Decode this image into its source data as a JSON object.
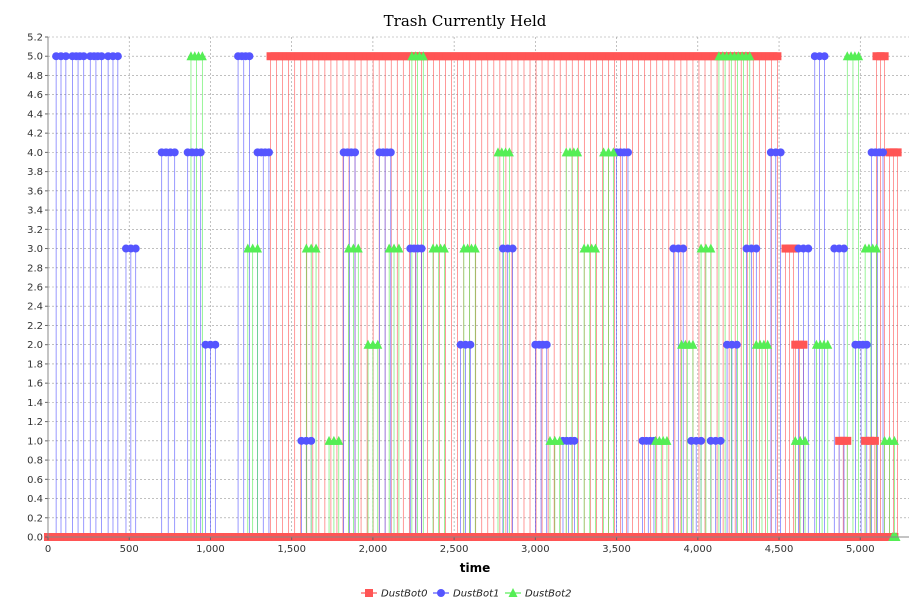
{
  "chart_data": {
    "type": "line",
    "title": "Trash Currently Held",
    "xlabel": "time",
    "ylabel": "",
    "xlim": [
      0,
      5300
    ],
    "ylim": [
      0,
      5.2
    ],
    "x_ticks": [
      "0",
      "500",
      "1,000",
      "1,500",
      "2,000",
      "2,500",
      "3,000",
      "3,500",
      "4,000",
      "4,500",
      "5,000"
    ],
    "x_tick_values": [
      0,
      500,
      1000,
      1500,
      2000,
      2500,
      3000,
      3500,
      4000,
      4500,
      5000
    ],
    "y_ticks": [
      "0.0",
      "0.2",
      "0.4",
      "0.6",
      "0.8",
      "1.0",
      "1.2",
      "1.4",
      "1.6",
      "1.8",
      "2.0",
      "2.2",
      "2.4",
      "2.6",
      "2.8",
      "3.0",
      "3.2",
      "3.4",
      "3.6",
      "3.8",
      "4.0",
      "4.2",
      "4.4",
      "4.6",
      "4.8",
      "5.0",
      "5.2"
    ],
    "grid": true,
    "legend_position": "bottom",
    "series": [
      {
        "name": "DustBot0",
        "color": "#ff5555",
        "marker": "square",
        "segments": [
          {
            "x": [
              0,
              5210
            ],
            "y": 0
          },
          {
            "x": [
              1370,
              4490
            ],
            "y": 5
          },
          {
            "x": [
              4540,
              4590
            ],
            "y": 3
          },
          {
            "x": [
              4600,
              4650
            ],
            "y": 2
          },
          {
            "x": [
              4870,
              4920
            ],
            "y": 1
          },
          {
            "x": [
              5030,
              5090
            ],
            "y": 1
          },
          {
            "x": [
              5100,
              5150
            ],
            "y": 5
          },
          {
            "x": [
              5180,
              5230
            ],
            "y": 4
          }
        ]
      },
      {
        "name": "DustBot1",
        "color": "#5555ff",
        "marker": "circle",
        "segments": [
          {
            "x": [
              50,
              110
            ],
            "y": 5
          },
          {
            "x": [
              150,
              220
            ],
            "y": 5
          },
          {
            "x": [
              260,
              330
            ],
            "y": 5
          },
          {
            "x": [
              370,
              430
            ],
            "y": 5
          },
          {
            "x": [
              480,
              540
            ],
            "y": 3
          },
          {
            "x": [
              700,
              780
            ],
            "y": 4
          },
          {
            "x": [
              860,
              940
            ],
            "y": 4
          },
          {
            "x": [
              970,
              1030
            ],
            "y": 2
          },
          {
            "x": [
              1170,
              1240
            ],
            "y": 5
          },
          {
            "x": [
              1290,
              1360
            ],
            "y": 4
          },
          {
            "x": [
              1560,
              1620
            ],
            "y": 1
          },
          {
            "x": [
              1820,
              1890
            ],
            "y": 4
          },
          {
            "x": [
              2040,
              2110
            ],
            "y": 4
          },
          {
            "x": [
              2230,
              2300
            ],
            "y": 3
          },
          {
            "x": [
              2540,
              2600
            ],
            "y": 2
          },
          {
            "x": [
              2800,
              2860
            ],
            "y": 3
          },
          {
            "x": [
              3000,
              3070
            ],
            "y": 2
          },
          {
            "x": [
              3170,
              3240
            ],
            "y": 1
          },
          {
            "x": [
              3500,
              3570
            ],
            "y": 4
          },
          {
            "x": [
              3660,
              3730
            ],
            "y": 1
          },
          {
            "x": [
              3850,
              3910
            ],
            "y": 3
          },
          {
            "x": [
              3960,
              4020
            ],
            "y": 1
          },
          {
            "x": [
              4080,
              4140
            ],
            "y": 1
          },
          {
            "x": [
              4180,
              4240
            ],
            "y": 2
          },
          {
            "x": [
              4300,
              4360
            ],
            "y": 3
          },
          {
            "x": [
              4450,
              4510
            ],
            "y": 4
          },
          {
            "x": [
              4620,
              4680
            ],
            "y": 3
          },
          {
            "x": [
              4720,
              4780
            ],
            "y": 5
          },
          {
            "x": [
              4840,
              4900
            ],
            "y": 3
          },
          {
            "x": [
              4970,
              5040
            ],
            "y": 2
          },
          {
            "x": [
              5070,
              5140
            ],
            "y": 4
          }
        ]
      },
      {
        "name": "DustBot2",
        "color": "#55ee55",
        "marker": "triangle",
        "segments": [
          {
            "x": [
              5200,
              5220
            ],
            "y": 0
          },
          {
            "x": [
              880,
              950
            ],
            "y": 5
          },
          {
            "x": [
              1230,
              1290
            ],
            "y": 3
          },
          {
            "x": [
              1590,
              1650
            ],
            "y": 3
          },
          {
            "x": [
              1730,
              1790
            ],
            "y": 1
          },
          {
            "x": [
              1850,
              1910
            ],
            "y": 3
          },
          {
            "x": [
              1970,
              2030
            ],
            "y": 2
          },
          {
            "x": [
              2100,
              2160
            ],
            "y": 3
          },
          {
            "x": [
              2240,
              2310
            ],
            "y": 5
          },
          {
            "x": [
              2370,
              2440
            ],
            "y": 3
          },
          {
            "x": [
              2560,
              2630
            ],
            "y": 3
          },
          {
            "x": [
              2770,
              2840
            ],
            "y": 4
          },
          {
            "x": [
              3090,
              3150
            ],
            "y": 1
          },
          {
            "x": [
              3190,
              3260
            ],
            "y": 4
          },
          {
            "x": [
              3300,
              3370
            ],
            "y": 3
          },
          {
            "x": [
              3420,
              3480
            ],
            "y": 4
          },
          {
            "x": [
              3740,
              3810
            ],
            "y": 1
          },
          {
            "x": [
              3900,
              3970
            ],
            "y": 2
          },
          {
            "x": [
              4020,
              4080
            ],
            "y": 3
          },
          {
            "x": [
              4130,
              4320
            ],
            "y": 5
          },
          {
            "x": [
              4360,
              4430
            ],
            "y": 2
          },
          {
            "x": [
              4600,
              4660
            ],
            "y": 1
          },
          {
            "x": [
              4730,
              4800
            ],
            "y": 2
          },
          {
            "x": [
              4920,
              4990
            ],
            "y": 5
          },
          {
            "x": [
              5030,
              5100
            ],
            "y": 3
          },
          {
            "x": [
              5150,
              5210
            ],
            "y": 1
          }
        ]
      }
    ]
  }
}
